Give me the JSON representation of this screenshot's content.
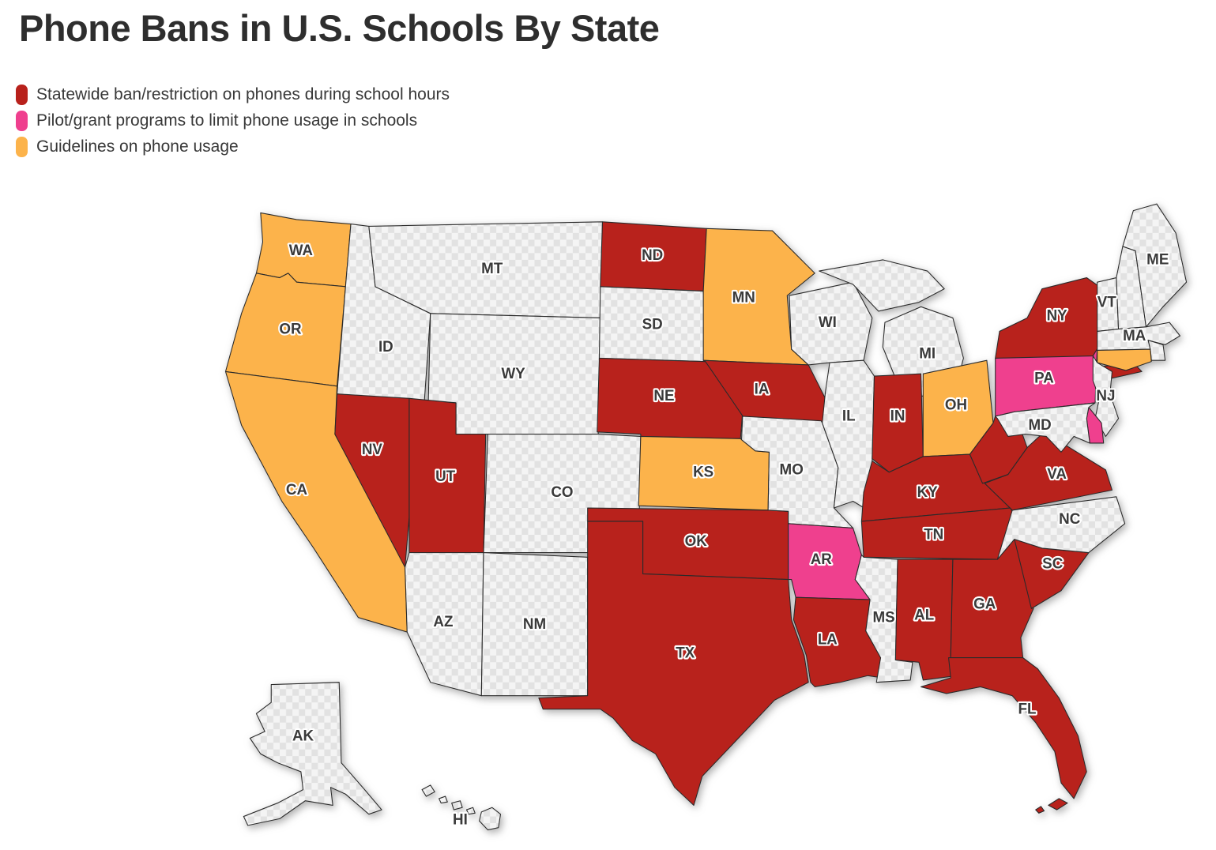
{
  "title": "Phone Bans in U.S. Schools By State",
  "legend": {
    "items": [
      {
        "key": "ban",
        "label": "Statewide ban/restriction on phones during school hours",
        "color": "#b8211c"
      },
      {
        "key": "pilot",
        "label": "Pilot/grant programs to limit phone usage in schools",
        "color": "#ef3f8e"
      },
      {
        "key": "guidelines",
        "label": "Guidelines on phone usage",
        "color": "#fcb34b"
      }
    ]
  },
  "map": {
    "border_color": "#2b2b2b",
    "label_color": "#3a3a3a",
    "label_halo": "#ffffff",
    "no_policy_fill": "#f4f4f4",
    "no_policy_checker": "#e2e2e2",
    "shadow_color": "#8a8a8a",
    "states": [
      {
        "abbr": "WA",
        "category": "guidelines",
        "label": true
      },
      {
        "abbr": "OR",
        "category": "guidelines",
        "label": true
      },
      {
        "abbr": "CA",
        "category": "guidelines",
        "label": true
      },
      {
        "abbr": "ID",
        "category": "none",
        "label": true
      },
      {
        "abbr": "MT",
        "category": "none",
        "label": true
      },
      {
        "abbr": "WY",
        "category": "none",
        "label": true
      },
      {
        "abbr": "NV",
        "category": "ban",
        "label": true
      },
      {
        "abbr": "UT",
        "category": "ban",
        "label": true
      },
      {
        "abbr": "CO",
        "category": "none",
        "label": true
      },
      {
        "abbr": "AZ",
        "category": "none",
        "label": true
      },
      {
        "abbr": "NM",
        "category": "none",
        "label": true
      },
      {
        "abbr": "ND",
        "category": "ban",
        "label": true
      },
      {
        "abbr": "SD",
        "category": "none",
        "label": true
      },
      {
        "abbr": "NE",
        "category": "ban",
        "label": true
      },
      {
        "abbr": "KS",
        "category": "guidelines",
        "label": true
      },
      {
        "abbr": "OK",
        "category": "ban",
        "label": true
      },
      {
        "abbr": "TX",
        "category": "ban",
        "label": true
      },
      {
        "abbr": "MN",
        "category": "guidelines",
        "label": true
      },
      {
        "abbr": "IA",
        "category": "ban",
        "label": true
      },
      {
        "abbr": "MO",
        "category": "none",
        "label": true
      },
      {
        "abbr": "AR",
        "category": "pilot",
        "label": true
      },
      {
        "abbr": "LA",
        "category": "ban",
        "label": true
      },
      {
        "abbr": "WI",
        "category": "none",
        "label": true
      },
      {
        "abbr": "IL",
        "category": "none",
        "label": true
      },
      {
        "abbr": "MS",
        "category": "none",
        "label": true
      },
      {
        "abbr": "MI",
        "category": "none",
        "label": true
      },
      {
        "abbr": "IN",
        "category": "ban",
        "label": true
      },
      {
        "abbr": "OH",
        "category": "guidelines",
        "label": true
      },
      {
        "abbr": "KY",
        "category": "ban",
        "label": true
      },
      {
        "abbr": "TN",
        "category": "ban",
        "label": true
      },
      {
        "abbr": "AL",
        "category": "ban",
        "label": true
      },
      {
        "abbr": "GA",
        "category": "ban",
        "label": true
      },
      {
        "abbr": "FL",
        "category": "ban",
        "label": true
      },
      {
        "abbr": "SC",
        "category": "ban",
        "label": true
      },
      {
        "abbr": "NC",
        "category": "none",
        "label": true
      },
      {
        "abbr": "VA",
        "category": "ban",
        "label": true
      },
      {
        "abbr": "WV",
        "category": "ban",
        "label": false
      },
      {
        "abbr": "PA",
        "category": "pilot",
        "label": true
      },
      {
        "abbr": "NY",
        "category": "ban",
        "label": true
      },
      {
        "abbr": "VT",
        "category": "none",
        "label": true
      },
      {
        "abbr": "NH",
        "category": "none",
        "label": false
      },
      {
        "abbr": "ME",
        "category": "none",
        "label": true
      },
      {
        "abbr": "MA",
        "category": "none",
        "label": true
      },
      {
        "abbr": "RI",
        "category": "none",
        "label": false
      },
      {
        "abbr": "CT",
        "category": "guidelines",
        "label": false
      },
      {
        "abbr": "NJ",
        "category": "none",
        "label": true
      },
      {
        "abbr": "DE",
        "category": "pilot",
        "label": false
      },
      {
        "abbr": "MD",
        "category": "none",
        "label": true
      },
      {
        "abbr": "AK",
        "category": "none",
        "label": true
      },
      {
        "abbr": "HI",
        "category": "none",
        "label": true
      }
    ]
  },
  "chart_data": {
    "type": "choropleth",
    "title": "Phone Bans in U.S. Schools By State",
    "legend_position": "top-left",
    "series": [
      {
        "name": "Statewide ban/restriction on phones during school hours",
        "color": "#b8211c",
        "states": [
          "ND",
          "NE",
          "IA",
          "NV",
          "UT",
          "OK",
          "TX",
          "LA",
          "IN",
          "KY",
          "TN",
          "AL",
          "GA",
          "FL",
          "SC",
          "VA",
          "WV",
          "NY"
        ]
      },
      {
        "name": "Pilot/grant programs to limit phone usage in schools",
        "color": "#ef3f8e",
        "states": [
          "PA",
          "AR",
          "DE"
        ]
      },
      {
        "name": "Guidelines on phone usage",
        "color": "#fcb34b",
        "states": [
          "WA",
          "OR",
          "CA",
          "MN",
          "KS",
          "OH",
          "CT"
        ]
      },
      {
        "name": "none",
        "color": "checkered-gray",
        "states": [
          "MT",
          "ID",
          "WY",
          "SD",
          "CO",
          "AZ",
          "NM",
          "MO",
          "WI",
          "IL",
          "MI",
          "MS",
          "NC",
          "NJ",
          "MD",
          "VT",
          "NH",
          "MA",
          "RI",
          "ME",
          "AK",
          "HI"
        ]
      }
    ]
  }
}
